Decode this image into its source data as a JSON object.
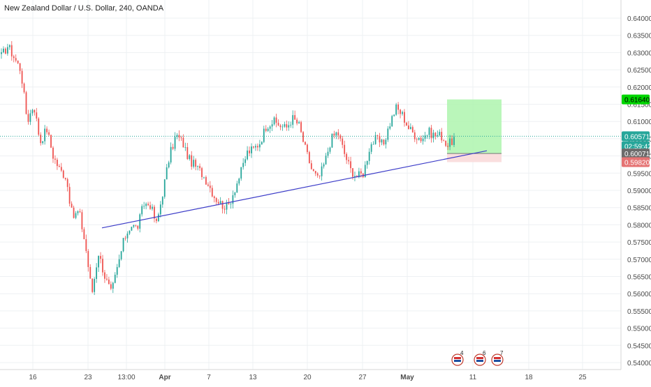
{
  "chart_data": {
    "type": "candlestick",
    "title": "New Zealand Dollar / U.S. Dollar, 240, OANDA",
    "ylim": [
      0.5395,
      0.6455
    ],
    "y_ticks": [
      "0.64000",
      "0.63500",
      "0.63000",
      "0.62500",
      "0.62000",
      "0.61500",
      "0.61000",
      "0.60500",
      "0.60000",
      "0.59500",
      "0.59000",
      "0.58500",
      "0.58000",
      "0.57500",
      "0.57000",
      "0.56500",
      "0.56000",
      "0.55500",
      "0.55000",
      "0.54500",
      "0.54000"
    ],
    "x_ticks": [
      {
        "label": "16",
        "bold": false
      },
      {
        "label": "23",
        "bold": false
      },
      {
        "label": "13:00",
        "bold": false
      },
      {
        "label": "Apr",
        "bold": true
      },
      {
        "label": "7",
        "bold": false
      },
      {
        "label": "13",
        "bold": false
      },
      {
        "label": "20",
        "bold": false
      },
      {
        "label": "27",
        "bold": false
      },
      {
        "label": "May",
        "bold": true
      },
      {
        "label": "11",
        "bold": false
      },
      {
        "label": "18",
        "bold": false
      },
      {
        "label": "25",
        "bold": false
      }
    ],
    "anchors": [
      0.629,
      0.632,
      0.6285,
      0.625,
      0.61,
      0.615,
      0.604,
      0.608,
      0.6,
      0.596,
      0.594,
      0.582,
      0.584,
      0.574,
      0.56,
      0.572,
      0.565,
      0.56,
      0.568,
      0.576,
      0.58,
      0.579,
      0.586,
      0.586,
      0.58,
      0.59,
      0.6,
      0.606,
      0.604,
      0.599,
      0.597,
      0.595,
      0.592,
      0.588,
      0.586,
      0.585,
      0.59,
      0.595,
      0.601,
      0.602,
      0.604,
      0.609,
      0.61,
      0.609,
      0.608,
      0.611,
      0.609,
      0.602,
      0.596,
      0.593,
      0.598,
      0.605,
      0.607,
      0.601,
      0.596,
      0.594,
      0.595,
      0.603,
      0.605,
      0.603,
      0.609,
      0.614,
      0.612,
      0.608,
      0.606,
      0.605,
      0.607,
      0.606,
      0.606,
      0.603,
      0.605
    ],
    "trendline": {
      "start_price": 0.5791,
      "end_price": 0.6015
    },
    "position": {
      "target": 0.6164,
      "entry": 0.60071,
      "stop": 0.5982
    },
    "price_labels": [
      {
        "id": "target",
        "text": "0.61640",
        "bg": "#00d600",
        "fg": "#000000"
      },
      {
        "id": "last",
        "text": "0.60571",
        "bg": "#26a69a",
        "fg": "#ffffff"
      },
      {
        "id": "countdown",
        "text": "02:59:42",
        "bg": "#26a69a",
        "fg": "#ffffff"
      },
      {
        "id": "entry",
        "text": "0.60071",
        "bg": "#6b6b6b",
        "fg": "#ffffff"
      },
      {
        "id": "stop",
        "text": "0.59820",
        "bg": "#e57373",
        "fg": "#ffffff"
      }
    ],
    "last_price": 0.60571,
    "event_badges": [
      {
        "text": "4"
      },
      {
        "text": "6"
      },
      {
        "text": "7"
      }
    ],
    "colors": {
      "up": "#26a69a",
      "down": "#ef5350",
      "trendline": "#3c3cc8",
      "target_zone": "#aef5ae",
      "stop_zone": "#fadada"
    }
  }
}
